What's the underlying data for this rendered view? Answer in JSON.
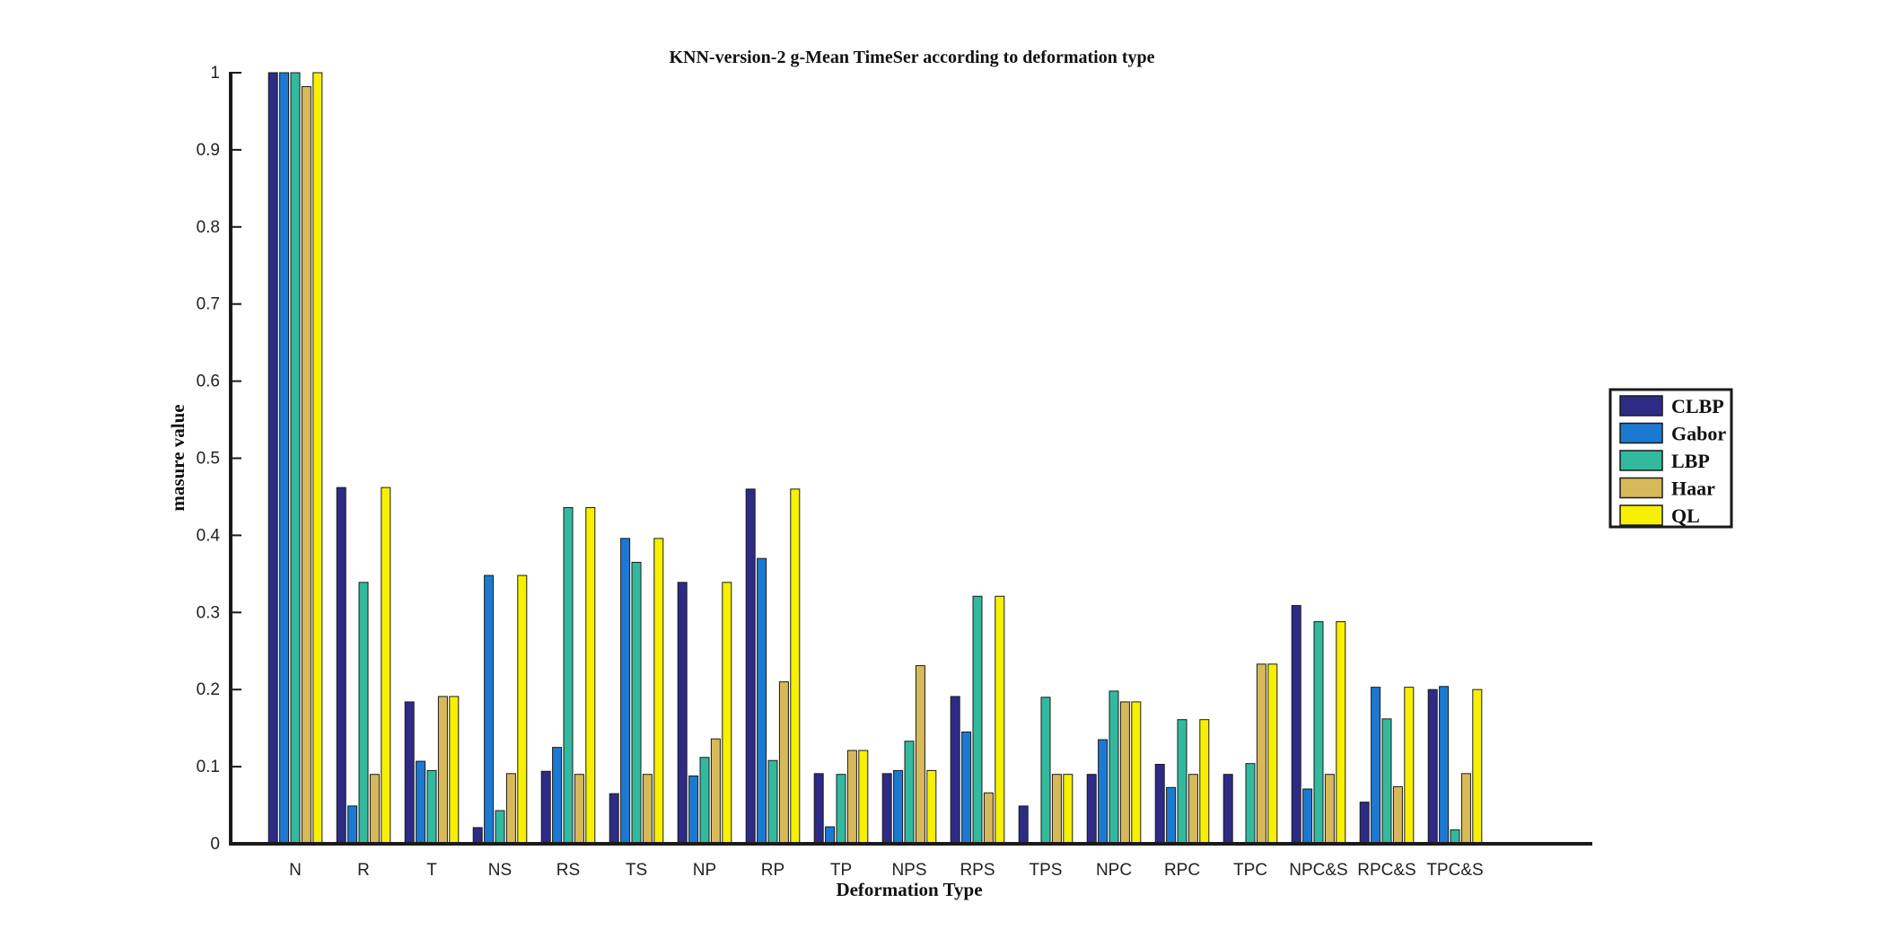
{
  "chart_data": {
    "type": "bar",
    "title": "KNN-version-2 g-Mean TimeSer according to deformation type",
    "xlabel": "Deformation Type",
    "ylabel": "masure value",
    "ylim": [
      0,
      1
    ],
    "yticks": [
      "0",
      "0.1",
      "0.2",
      "0.3",
      "0.4",
      "0.5",
      "0.6",
      "0.7",
      "0.8",
      "0.9",
      "1"
    ],
    "legend_position": "right",
    "grid": false,
    "categories": [
      "N",
      "R",
      "T",
      "NS",
      "RS",
      "TS",
      "NP",
      "RP",
      "TP",
      "NPS",
      "RPS",
      "TPS",
      "NPC",
      "RPC",
      "TPC",
      "NPC&S",
      "RPC&S",
      "TPC&S"
    ],
    "series": [
      {
        "name": "CLBP",
        "color": "#2e2b87",
        "values": [
          1.0,
          0.462,
          0.184,
          0.021,
          0.094,
          0.065,
          0.339,
          0.46,
          0.091,
          0.091,
          0.191,
          0.049,
          0.09,
          0.103,
          0.09,
          0.309,
          0.054,
          0.2
        ]
      },
      {
        "name": "Gabor",
        "color": "#1b79d2",
        "values": [
          1.0,
          0.049,
          0.107,
          0.348,
          0.125,
          0.396,
          0.088,
          0.37,
          0.022,
          0.095,
          0.145,
          0.0,
          0.135,
          0.073,
          0.0,
          0.071,
          0.203,
          0.204
        ]
      },
      {
        "name": "LBP",
        "color": "#33b99e",
        "values": [
          1.0,
          0.339,
          0.095,
          0.043,
          0.436,
          0.365,
          0.112,
          0.108,
          0.09,
          0.133,
          0.321,
          0.19,
          0.198,
          0.161,
          0.104,
          0.288,
          0.162,
          0.018
        ]
      },
      {
        "name": "Haar",
        "color": "#d8b95a",
        "values": [
          0.982,
          0.09,
          0.191,
          0.091,
          0.09,
          0.09,
          0.136,
          0.21,
          0.121,
          0.231,
          0.066,
          0.09,
          0.184,
          0.09,
          0.233,
          0.09,
          0.074,
          0.091
        ]
      },
      {
        "name": "QL",
        "color": "#f7f000",
        "values": [
          1.0,
          0.462,
          0.191,
          0.348,
          0.436,
          0.396,
          0.339,
          0.46,
          0.121,
          0.095,
          0.321,
          0.09,
          0.184,
          0.161,
          0.233,
          0.288,
          0.203,
          0.2
        ]
      }
    ]
  }
}
